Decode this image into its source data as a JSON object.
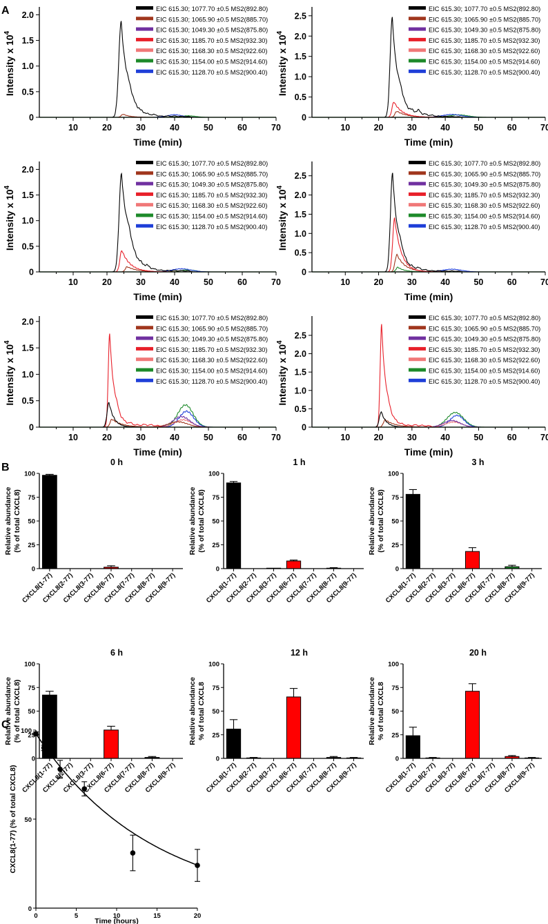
{
  "colors": {
    "black": "#000000",
    "brown": "#a0361d",
    "purple": "#7030a0",
    "red": "#e8202a",
    "pink": "#f07878",
    "green": "#1d8a2a",
    "blue": "#1f3fd8",
    "bar_red": "#ff0000"
  },
  "panel_letters": {
    "a": "A",
    "b": "B",
    "c": "C"
  },
  "chart_data": [
    {
      "id": "eic",
      "type": "line",
      "xlabel": "Time (min)",
      "ylabel": "Intensity x 10",
      "ylabel_exponent": "4",
      "xlim": [
        0,
        70
      ],
      "xticks": [
        10,
        20,
        30,
        40,
        50,
        60,
        70
      ],
      "legend": [
        {
          "label": "EIC 615.30; 1077.70 ±0.5 MS2(892.80)",
          "color_key": "black"
        },
        {
          "label": "EIC 615.30; 1065.90 ±0.5 MS2(885.70)",
          "color_key": "brown"
        },
        {
          "label": "EIC 615.30; 1049.30 ±0.5 MS2(875.80)",
          "color_key": "purple"
        },
        {
          "label": "EIC 615.30; 1185.70 ±0.5 MS2(932.30)",
          "color_key": "red"
        },
        {
          "label": "EIC 615.30; 1168.30 ±0.5 MS2(922.60)",
          "color_key": "pink"
        },
        {
          "label": "EIC 615.30; 1154.00 ±0.5 MS2(914.60)",
          "color_key": "green"
        },
        {
          "label": "EIC 615.30; 1128.70 ±0.5 MS2(900.40)",
          "color_key": "blue"
        }
      ],
      "panels": [
        {
          "ylim": [
            0,
            2.1
          ],
          "yticks": [
            0,
            0.5,
            1.0,
            1.5,
            2.0
          ],
          "ytick_labels": [
            "0",
            "0.5",
            "1.0",
            "1.5",
            "2.0"
          ],
          "peaks": [
            {
              "color_key": "black",
              "center": 24.2,
              "height": 1.87,
              "rise": 1.0,
              "decay": 2.0,
              "tail": [
                [
                  26.5,
                  0.24
                ],
                [
                  28,
                  0.12
                ],
                [
                  30,
                  0.09
                ],
                [
                  32,
                  0.07
                ],
                [
                  34,
                  0.08
                ],
                [
                  36,
                  0.04
                ],
                [
                  38,
                  0.05
                ],
                [
                  40,
                  0.05
                ],
                [
                  42,
                  0.04
                ],
                [
                  44,
                  0.03
                ]
              ]
            },
            {
              "color_key": "brown",
              "center": 24.8,
              "height": 0.06
            },
            {
              "color_key": "blue",
              "center": 40,
              "height": 0.05,
              "width": 3
            },
            {
              "color_key": "green",
              "center": 44,
              "height": 0.03,
              "width": 3
            }
          ]
        },
        {
          "ylim": [
            0,
            2.65
          ],
          "yticks": [
            0,
            0.5,
            1.0,
            1.5,
            2.0,
            2.5
          ],
          "ytick_labels": [
            "0",
            "0.5",
            "1.0",
            "1.5",
            "2.0",
            "2.5"
          ],
          "peaks": [
            {
              "color_key": "black",
              "center": 24.1,
              "height": 2.46,
              "rise": 0.9,
              "decay": 1.8,
              "tail": [
                [
                  26.5,
                  0.35
                ],
                [
                  28,
                  0.16
                ],
                [
                  30,
                  0.2
                ],
                [
                  32,
                  0.28
                ],
                [
                  34,
                  0.14
                ],
                [
                  36,
                  0.1
                ],
                [
                  38,
                  0.06
                ],
                [
                  40,
                  0.05
                ],
                [
                  42,
                  0.04
                ],
                [
                  44,
                  0.03
                ]
              ]
            },
            {
              "color_key": "red",
              "center": 24.6,
              "height": 0.38,
              "decay": 2.5
            },
            {
              "color_key": "brown",
              "center": 25.5,
              "height": 0.15,
              "decay": 3
            },
            {
              "color_key": "blue",
              "center": 42,
              "height": 0.07,
              "width": 4
            },
            {
              "color_key": "green",
              "center": 44,
              "height": 0.06,
              "width": 4
            }
          ]
        },
        {
          "ylim": [
            0,
            2.1
          ],
          "yticks": [
            0,
            0.5,
            1.0,
            1.5,
            2.0
          ],
          "ytick_labels": [
            "0",
            "0.5",
            "1.0",
            "1.5",
            "2.0"
          ],
          "peaks": [
            {
              "color_key": "black",
              "center": 24.3,
              "height": 1.92,
              "rise": 1.0,
              "decay": 2.2,
              "tail": [
                [
                  26.5,
                  0.35
                ],
                [
                  28,
                  0.15
                ],
                [
                  30,
                  0.12
                ],
                [
                  32,
                  0.14
                ],
                [
                  34,
                  0.07
                ],
                [
                  36,
                  0.05
                ],
                [
                  38,
                  0.05
                ],
                [
                  40,
                  0.06
                ],
                [
                  42,
                  0.05
                ],
                [
                  44,
                  0.04
                ]
              ]
            },
            {
              "color_key": "red",
              "center": 24.4,
              "height": 0.42,
              "decay": 2.5
            },
            {
              "color_key": "brown",
              "center": 26,
              "height": 0.1,
              "decay": 3
            },
            {
              "color_key": "blue",
              "center": 42,
              "height": 0.06,
              "width": 4
            },
            {
              "color_key": "green",
              "center": 44,
              "height": 0.04,
              "width": 3
            }
          ]
        },
        {
          "ylim": [
            0,
            2.8
          ],
          "yticks": [
            0,
            0.5,
            1.0,
            1.5,
            2.0,
            2.5
          ],
          "ytick_labels": [
            "0",
            "0.5",
            "1.0",
            "1.5",
            "2.0",
            "2.5"
          ],
          "peaks": [
            {
              "color_key": "black",
              "center": 24.2,
              "height": 2.58,
              "rise": 0.9,
              "decay": 1.7,
              "tail": [
                [
                  26.5,
                  0.4
                ],
                [
                  28,
                  0.2
                ],
                [
                  30,
                  0.15
                ],
                [
                  32,
                  0.17
                ],
                [
                  34,
                  0.1
                ],
                [
                  36,
                  0.06
                ],
                [
                  38,
                  0.06
                ],
                [
                  40,
                  0.05
                ],
                [
                  42,
                  0.05
                ],
                [
                  44,
                  0.04
                ]
              ]
            },
            {
              "color_key": "red",
              "center": 24.8,
              "height": 1.4,
              "decay": 2.0
            },
            {
              "color_key": "brown",
              "center": 25.5,
              "height": 0.45,
              "decay": 2.5
            },
            {
              "color_key": "green",
              "center": 25.8,
              "height": 0.12,
              "decay": 2
            },
            {
              "color_key": "blue",
              "center": 42,
              "height": 0.07,
              "width": 4
            }
          ]
        },
        {
          "ylim": [
            0,
            2.05
          ],
          "yticks": [
            0,
            0.5,
            1.0,
            1.5,
            2.0
          ],
          "ytick_labels": [
            "0",
            "0.5",
            "1.0",
            "1.5",
            "2.0"
          ],
          "peaks": [
            {
              "color_key": "red",
              "center": 20.8,
              "height": 1.78,
              "rise": 0.6,
              "decay": 1.4,
              "tail": [
                [
                  23,
                  0.2
                ],
                [
                  25,
                  0.1
                ],
                [
                  27,
                  0.12
                ],
                [
                  29,
                  0.08
                ],
                [
                  31,
                  0.1
                ],
                [
                  33,
                  0.09
                ],
                [
                  35,
                  0.06
                ]
              ]
            },
            {
              "color_key": "black",
              "center": 20.6,
              "height": 0.47,
              "decay": 1.5
            },
            {
              "color_key": "brown",
              "center": 21.5,
              "height": 0.15,
              "decay": 3
            },
            {
              "color_key": "green",
              "center": 43.2,
              "height": 0.42,
              "width": 3.2
            },
            {
              "color_key": "blue",
              "center": 43.5,
              "height": 0.3,
              "width": 3
            },
            {
              "color_key": "purple",
              "center": 42,
              "height": 0.2,
              "width": 3.5
            },
            {
              "color_key": "pink",
              "center": 42.5,
              "height": 0.14,
              "width": 3.5
            },
            {
              "color_key": "brown",
              "center": 41,
              "height": 0.1,
              "width": 4
            }
          ]
        },
        {
          "ylim": [
            0,
            2.95
          ],
          "yticks": [
            0,
            0.5,
            1.0,
            1.5,
            2.0,
            2.5
          ],
          "ytick_labels": [
            "0",
            "0.5",
            "1.0",
            "1.5",
            "2.0",
            "2.5"
          ],
          "peaks": [
            {
              "color_key": "red",
              "center": 20.9,
              "height": 2.8,
              "rise": 0.6,
              "decay": 1.4,
              "tail": [
                [
                  23,
                  0.25
                ],
                [
                  25,
                  0.14
                ],
                [
                  27,
                  0.12
                ],
                [
                  29,
                  0.09
                ],
                [
                  31,
                  0.12
                ],
                [
                  33,
                  0.1
                ],
                [
                  35,
                  0.08
                ]
              ]
            },
            {
              "color_key": "black",
              "center": 20.8,
              "height": 0.42,
              "decay": 1.5
            },
            {
              "color_key": "brown",
              "center": 22,
              "height": 0.2,
              "decay": 3
            },
            {
              "color_key": "green",
              "center": 43,
              "height": 0.4,
              "width": 3.5
            },
            {
              "color_key": "blue",
              "center": 43.5,
              "height": 0.32,
              "width": 3
            },
            {
              "color_key": "purple",
              "center": 42,
              "height": 0.18,
              "width": 3.5
            },
            {
              "color_key": "pink",
              "center": 42.5,
              "height": 0.14,
              "width": 3.5
            }
          ]
        }
      ]
    },
    {
      "id": "bars",
      "type": "bar",
      "categories": [
        "CXCL8(1-77)",
        "CXCL8(2-77)",
        "CXCL8(3-77)",
        "CXCL8(6-77)",
        "CXCL8(7-77)",
        "CXCL8(8-77)",
        "CXCL8(9-77)"
      ],
      "ylim": [
        0,
        100
      ],
      "yticks": [
        0,
        25,
        50,
        75,
        100
      ],
      "ylabel_default": [
        "Relative abundance",
        "(% of total CXCL8)"
      ],
      "ylabel_alt": [
        "Relative abundance",
        "% of total CXCL8"
      ],
      "panels": [
        {
          "title": "0 h",
          "ylabel_variant": "default",
          "values": [
            98,
            0,
            0,
            1.5,
            0,
            0,
            0
          ],
          "errors": [
            1,
            0,
            0,
            1.5,
            0,
            0,
            0
          ],
          "colors": [
            "black",
            "black",
            "black",
            "bar_red",
            "black",
            "black",
            "black"
          ]
        },
        {
          "title": "1 h",
          "ylabel_variant": "default",
          "values": [
            90,
            0,
            0.5,
            8,
            0,
            0.5,
            0
          ],
          "errors": [
            1.5,
            0,
            0,
            1,
            0,
            0.5,
            0
          ],
          "colors": [
            "black",
            "black",
            "black",
            "bar_red",
            "black",
            "black",
            "black"
          ]
        },
        {
          "title": "3 h",
          "ylabel_variant": "default",
          "values": [
            78,
            0,
            0,
            18,
            0,
            2,
            0
          ],
          "errors": [
            5,
            0,
            0,
            4,
            0,
            1.5,
            0
          ],
          "colors": [
            "black",
            "black",
            "black",
            "bar_red",
            "black",
            "green",
            "black"
          ]
        },
        {
          "title": "6 h",
          "ylabel_variant": "default",
          "values": [
            67,
            0,
            0,
            30,
            0,
            1,
            0
          ],
          "errors": [
            4,
            0,
            0,
            4,
            0,
            1,
            0
          ],
          "colors": [
            "black",
            "black",
            "black",
            "bar_red",
            "black",
            "black",
            "black"
          ]
        },
        {
          "title": "12 h",
          "ylabel_variant": "alt",
          "values": [
            31,
            0.5,
            0,
            65,
            0,
            1,
            0.5
          ],
          "errors": [
            10,
            0.5,
            0,
            9,
            0,
            1,
            0.5
          ],
          "colors": [
            "black",
            "black",
            "black",
            "bar_red",
            "black",
            "black",
            "black"
          ]
        },
        {
          "title": "20 h",
          "ylabel_variant": "alt",
          "values": [
            24,
            0.5,
            0,
            71,
            0,
            2,
            0.5
          ],
          "errors": [
            9,
            0.5,
            0,
            8,
            0,
            1,
            0.5
          ],
          "colors": [
            "black",
            "black",
            "black",
            "bar_red",
            "black",
            "bar_red",
            "black"
          ]
        }
      ]
    },
    {
      "id": "decay",
      "type": "scatter",
      "xlabel": "Time (hours)",
      "ylabel": "CXCL8(1-77) (% of total CXCL8)",
      "xlim": [
        0,
        20
      ],
      "ylim": [
        0,
        100
      ],
      "xticks": [
        0,
        5,
        10,
        15,
        20
      ],
      "yticks": [
        0,
        50,
        100
      ],
      "x": [
        0,
        1,
        3,
        6,
        12,
        20
      ],
      "y": [
        98,
        90,
        78,
        67,
        31,
        24
      ],
      "errors": [
        1,
        1.5,
        5,
        4,
        10,
        9
      ],
      "fit": {
        "model": "exponential decay",
        "a": 98,
        "k": 0.07
      }
    }
  ]
}
